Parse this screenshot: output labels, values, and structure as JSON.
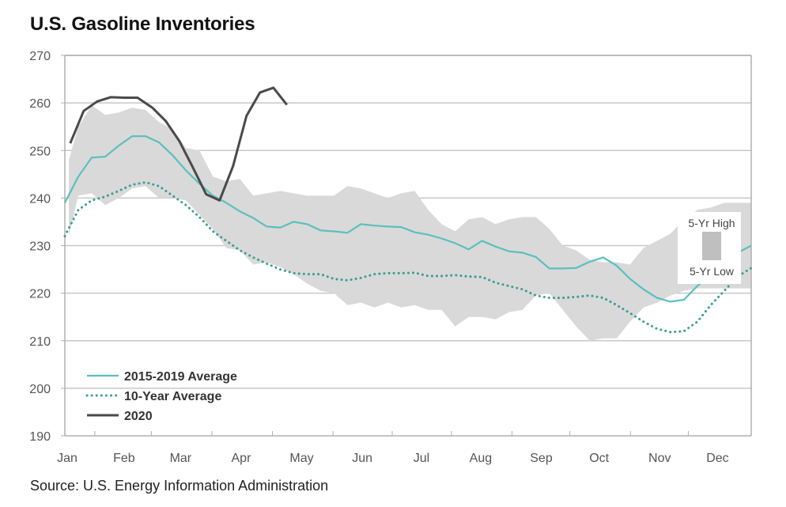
{
  "title": "U.S. Gasoline Inventories",
  "source": "Source: U.S. Energy Information Administration",
  "colors": {
    "avg_5yr": "#5bbfbf",
    "avg_10yr": "#3a9e8e",
    "y2020": "#4a4a4a",
    "band": "#d9d9d9",
    "band_legend": "#bfbfbf",
    "grid": "#c8c8c8",
    "axis": "#b0b0b0"
  },
  "chart_data": {
    "type": "line",
    "title": "U.S. Gasoline Inventories",
    "xlabel": "",
    "ylabel": "",
    "x_unit": "week of year",
    "xlim": [
      1,
      52
    ],
    "ylim": [
      190,
      270
    ],
    "yticks": [
      190,
      200,
      210,
      220,
      230,
      240,
      250,
      260,
      270
    ],
    "grid": "horizontal",
    "month_ticks": [
      {
        "label": "Jan",
        "week": 1
      },
      {
        "label": "Feb",
        "week": 5.4
      },
      {
        "label": "Mar",
        "week": 9.6
      },
      {
        "label": "Apr",
        "week": 14.1
      },
      {
        "label": "May",
        "week": 18.6
      },
      {
        "label": "Jun",
        "week": 23.1
      },
      {
        "label": "Jul",
        "week": 27.5
      },
      {
        "label": "Aug",
        "week": 31.9
      },
      {
        "label": "Sep",
        "week": 36.4
      },
      {
        "label": "Oct",
        "week": 40.7
      },
      {
        "label": "Nov",
        "week": 45.2
      },
      {
        "label": "Dec",
        "week": 49.5
      }
    ],
    "legend": {
      "placement": "bottom-left",
      "entries": [
        "2015-2019 Average",
        "10-Year Average",
        "2020"
      ]
    },
    "band": {
      "high_label": "5-Yr High",
      "low_label": "5-Yr Low",
      "legend_placement": "right",
      "weeks": [
        1.3,
        2,
        3,
        4,
        5,
        6,
        7,
        8,
        9,
        10,
        11,
        12,
        13,
        14,
        15,
        16,
        17,
        18,
        19,
        20,
        21,
        22,
        23,
        24,
        25,
        26,
        27,
        28,
        29,
        30,
        31,
        32,
        33,
        34,
        35,
        36,
        37,
        38,
        39,
        40,
        41,
        42,
        43,
        44,
        45,
        46,
        47,
        48,
        49,
        50,
        51,
        52
      ],
      "high": [
        248,
        255,
        259.5,
        257.5,
        258,
        259,
        258.5,
        256,
        254.5,
        250.5,
        250,
        244.5,
        243.5,
        244,
        240.5,
        241,
        241.5,
        241,
        240.5,
        240.5,
        240.5,
        242.5,
        242,
        241,
        240,
        241,
        241.5,
        237.5,
        234.5,
        233,
        235.5,
        236,
        234.5,
        235.5,
        236,
        236,
        233.5,
        230,
        229,
        227,
        226.5,
        226.5,
        226,
        229.5,
        231,
        232.5,
        235.5,
        237.5,
        238,
        239,
        239,
        239
      ],
      "low": [
        232,
        240.5,
        241,
        238.5,
        240,
        242,
        242.5,
        240,
        240,
        239.5,
        236.5,
        233.5,
        229.5,
        229,
        226,
        226.5,
        225.5,
        224,
        222,
        220.5,
        220,
        217.5,
        218,
        217,
        218,
        217,
        217.5,
        216.5,
        216.5,
        213,
        215,
        215,
        214.5,
        216,
        216.5,
        219.5,
        220,
        216.5,
        213,
        210,
        210.5,
        210.5,
        214,
        217,
        218,
        219.5,
        220.5,
        221,
        221,
        221,
        221,
        221
      ]
    },
    "series": [
      {
        "name": "2015-2019 Average",
        "style": "solid",
        "weeks": [
          1,
          2,
          3,
          4,
          5,
          6,
          7,
          8,
          9,
          10,
          11,
          12,
          13,
          14,
          15,
          16,
          17,
          18,
          19,
          20,
          21,
          22,
          23,
          24,
          25,
          26,
          27,
          28,
          29,
          30,
          31,
          32,
          33,
          34,
          35,
          36,
          37,
          38,
          39,
          40,
          41,
          42,
          43,
          44,
          45,
          46,
          47,
          48,
          49,
          50,
          51,
          52
        ],
        "values": [
          239,
          244.5,
          248.5,
          248.7,
          251,
          253,
          253,
          251.7,
          249,
          245.8,
          243,
          240.5,
          239,
          237.2,
          235.8,
          234,
          233.8,
          235,
          234.5,
          233.2,
          233,
          232.7,
          234.5,
          234.2,
          234,
          233.9,
          232.8,
          232.3,
          231.5,
          230.5,
          229.2,
          231,
          229.8,
          228.8,
          228.5,
          227.6,
          225.2,
          225.2,
          225.3,
          226.6,
          227.5,
          225.8,
          223,
          220.8,
          219,
          218.2,
          218.6,
          221.5,
          224,
          226.5,
          228.5,
          230
        ]
      },
      {
        "name": "10-Year Average",
        "style": "dotted",
        "weeks": [
          1,
          2,
          3,
          4,
          5,
          6,
          7,
          8,
          9,
          10,
          11,
          12,
          13,
          14,
          15,
          16,
          17,
          18,
          19,
          20,
          21,
          22,
          23,
          24,
          25,
          26,
          27,
          28,
          29,
          30,
          31,
          32,
          33,
          34,
          35,
          36,
          37,
          38,
          39,
          40,
          41,
          42,
          43,
          44,
          45,
          46,
          47,
          48,
          49,
          50,
          51,
          52
        ],
        "values": [
          232,
          237.5,
          239.5,
          240.3,
          241.5,
          242.8,
          243.3,
          242.5,
          240.5,
          238.5,
          236,
          233,
          231,
          229,
          227.5,
          226.2,
          225,
          224.2,
          224,
          224,
          223,
          222.7,
          223.2,
          224,
          224.2,
          224.2,
          224.3,
          223.6,
          223.6,
          223.8,
          223.5,
          223.4,
          222.2,
          221.5,
          220.8,
          219.5,
          219,
          219,
          219.2,
          219.5,
          219,
          217.5,
          215.8,
          214,
          212.5,
          211.8,
          212,
          214,
          217.5,
          220.5,
          223.5,
          225.3
        ]
      },
      {
        "name": "2020",
        "style": "solid-thick",
        "weeks": [
          1.4,
          2.4,
          3.4,
          4.4,
          5.4,
          6.4,
          7.5,
          8.5,
          9.5,
          10.5,
          11.5,
          12.5,
          13.5,
          14.5,
          15.5,
          16.5,
          17.5
        ],
        "values": [
          251.5,
          258.3,
          260.3,
          261.2,
          261.1,
          261.1,
          259,
          256.2,
          252,
          246.5,
          240.8,
          239.5,
          246.7,
          257.3,
          262.2,
          263.2,
          259.6
        ]
      }
    ]
  }
}
